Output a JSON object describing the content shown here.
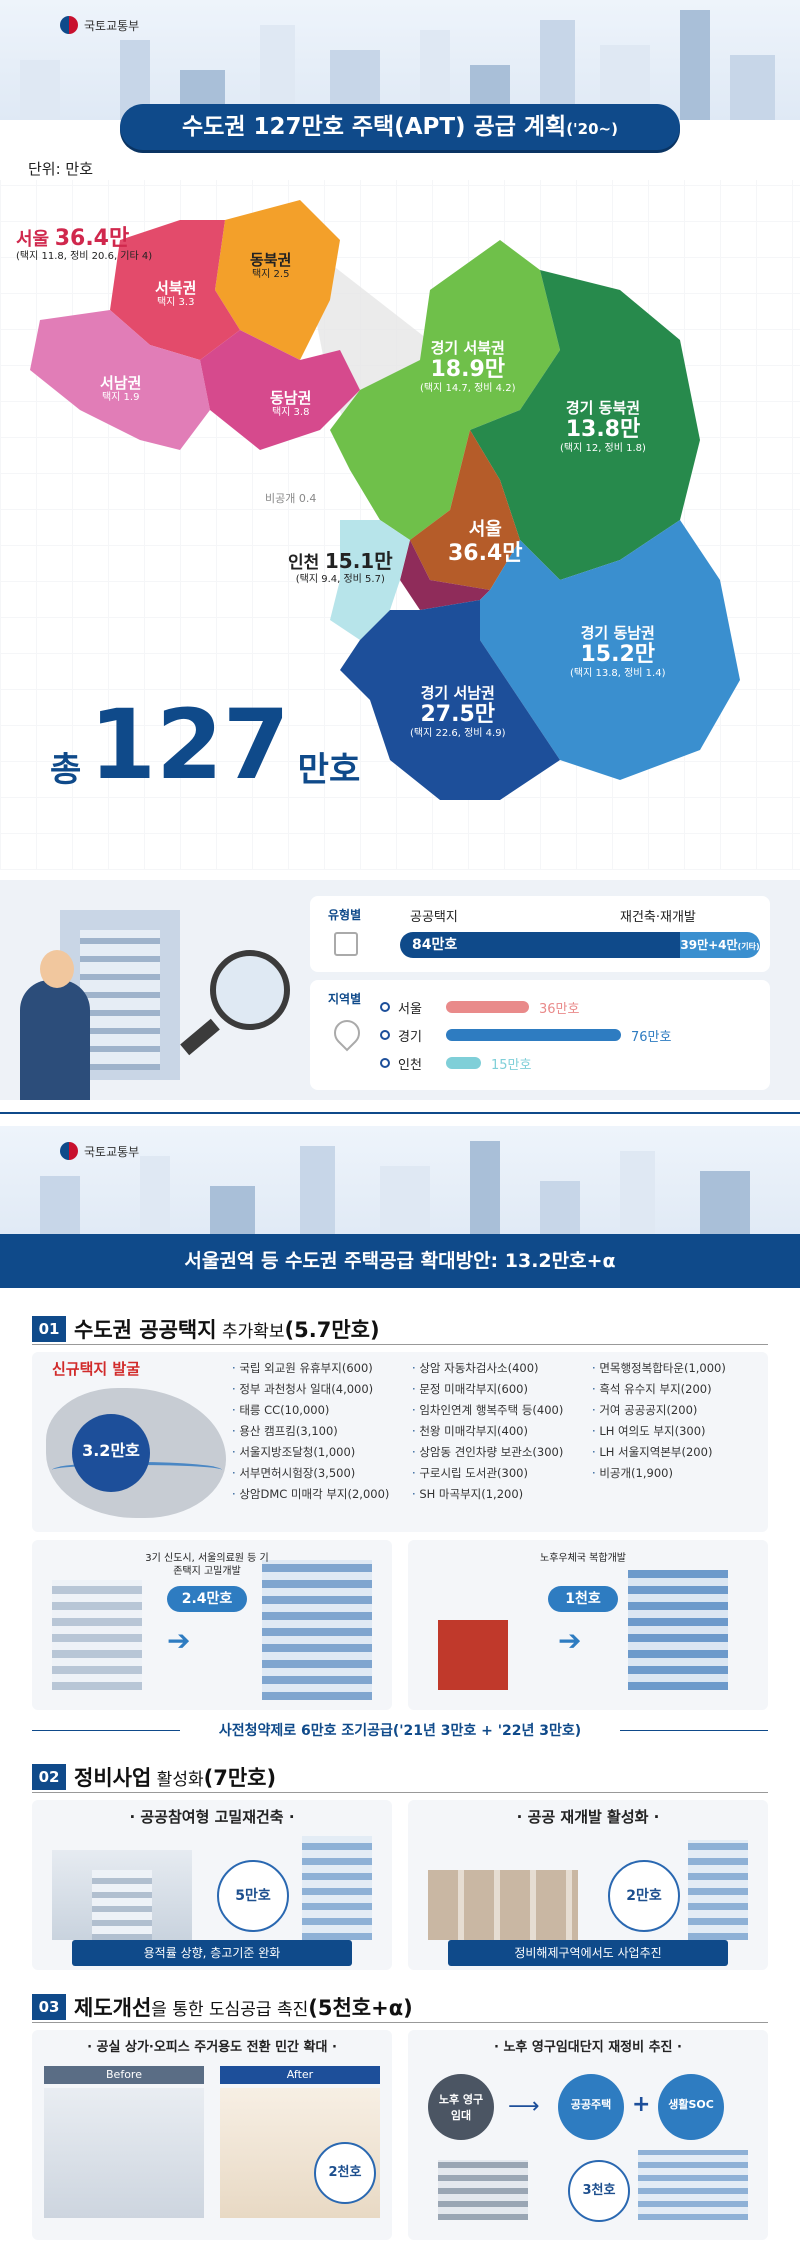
{
  "header1": {
    "ministry": "국토교통부",
    "title": "수도권 127만호 주택(APT) 공급 계획",
    "title_suffix": "('20~)",
    "unit": "단위: 만호"
  },
  "map": {
    "seoul": {
      "name": "서울",
      "value": "36.4만",
      "detail": "(택지 11.8, 정비 20.6, 기타 4)"
    },
    "seoul_regions": [
      {
        "name": "동북권",
        "detail": "택지 2.5"
      },
      {
        "name": "서북권",
        "detail": "택지 3.3"
      },
      {
        "name": "서남권",
        "detail": "택지 1.9"
      },
      {
        "name": "동남권",
        "detail": "택지 3.8"
      }
    ],
    "other_note": "비공개 0.4",
    "gyeonggi_nw": {
      "name": "경기 서북권",
      "value": "18.9만",
      "detail": "(택지 14.7, 정비 4.2)"
    },
    "gyeonggi_ne": {
      "name": "경기 동북권",
      "value": "13.8만",
      "detail": "(택지 12, 정비 1.8)"
    },
    "gyeonggi_se": {
      "name": "경기 동남권",
      "value": "15.2만",
      "detail": "(택지 13.8, 정비 1.4)"
    },
    "gyeonggi_sw": {
      "name": "경기 서남권",
      "value": "27.5만",
      "detail": "(택지 22.6, 정비 4.9)"
    },
    "incheon": {
      "name": "인천",
      "value": "15.1만",
      "detail": "(택지 9.4, 정비 5.7)"
    },
    "seoul_center": {
      "name": "서울",
      "value": "36.4만"
    },
    "total_prefix": "총",
    "total_value": "127",
    "total_suffix": "만호"
  },
  "breakdown": {
    "type_label": "유형별",
    "public_land_label": "공공택지",
    "public_land_value": "84만호",
    "redevelop_label": "재건축·재개발",
    "redevelop_value": "39만+4만",
    "redevelop_note": "(기타)",
    "region_label": "지역별",
    "regions": [
      {
        "name": "서울",
        "value": "36만호",
        "frac": 0.36,
        "color": "#e98a8a"
      },
      {
        "name": "경기",
        "value": "76만호",
        "frac": 0.76,
        "color": "#2e7cc1"
      },
      {
        "name": "인천",
        "value": "15만호",
        "frac": 0.15,
        "color": "#7fcfd8"
      }
    ]
  },
  "header2": {
    "ministry": "국토교통부",
    "title": "서울권역 등 수도권 주택공급 확대방안: 13.2만호+α"
  },
  "sec1": {
    "num": "01",
    "title_a": "수도권 공공택지",
    "title_b": " 추가확보",
    "title_c": "(5.7만호)",
    "new_site": "신규택지 발굴",
    "new_value": "3.2만호",
    "col1": [
      "국립 외교원 유휴부지(600)",
      "정부 과천청사 일대(4,000)",
      "태릉 CC(10,000)",
      "용산 캠프킴(3,100)",
      "서울지방조달청(1,000)",
      "서부면허시험장(3,500)",
      "상암DMC 미매각 부지(2,000)"
    ],
    "col2": [
      "상암 자동차검사소(400)",
      "문정 미매각부지(600)",
      "임차인연계 행복주택 등(400)",
      "천왕 미매각부지(400)",
      "상암동 견인차량 보관소(300)",
      "구로시립 도서관(300)",
      "SH 마곡부지(1,200)"
    ],
    "col3": [
      "면목행정복합타운(1,000)",
      "흑석 유수지 부지(200)",
      "거여 공공공지(200)",
      "LH 여의도 부지(300)",
      "LH 서울지역본부(200)",
      "비공개(1,900)"
    ],
    "box1_text": "3기 신도시, 서울의료원 등 기존택지 고밀개발",
    "box1_value": "2.4만호",
    "box2_text": "노후우체국 복합개발",
    "box2_value": "1천호",
    "early": "사전청약제로 6만호 조기공급('21년 3만호 + '22년 3만호)"
  },
  "sec2": {
    "num": "02",
    "title_a": "정비사업",
    "title_b": " 활성화",
    "title_c": "(7만호)",
    "card1_title": "· 공공참여형 고밀재건축 ·",
    "card1_value": "5만호",
    "card1_caption": "용적률 상향, 층고기준 완화",
    "card2_title": "· 공공 재개발 활성화 ·",
    "card2_value": "2만호",
    "card2_caption": "정비해제구역에서도 사업추진"
  },
  "sec3": {
    "num": "03",
    "title_a": "제도개선",
    "title_b": "을 통한 도심공급 촉진",
    "title_c": "(5천호+α)",
    "card1_title": "· 공실 상가·오피스 주거용도 전환 민간 확대 ·",
    "before": "Before",
    "after": "After",
    "card1_value": "2천호",
    "card2_title": "· 노후 영구임대단지 재정비 추진 ·",
    "old_rental": "노후 영구임대",
    "public_housing": "공공주택",
    "plus": "+",
    "soc": "생활SOC",
    "card2_value": "3천호"
  }
}
